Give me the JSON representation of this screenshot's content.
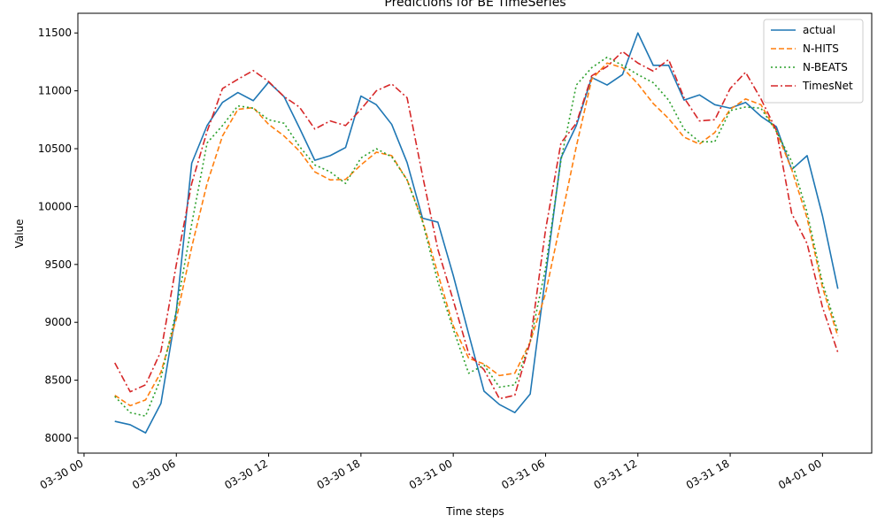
{
  "chart_data": {
    "type": "line",
    "title": "Predictions for BE TimeSeries",
    "xlabel": "Time steps",
    "ylabel": "Value",
    "ylim": [
      7870,
      11670
    ],
    "yticks": [
      8000,
      8500,
      9000,
      9500,
      10000,
      10500,
      11000,
      11500
    ],
    "xlim_hours": [
      -0.4,
      51.2
    ],
    "xticks": [
      {
        "hour": 0,
        "label": "03-30 00"
      },
      {
        "hour": 6,
        "label": "03-30 06"
      },
      {
        "hour": 12,
        "label": "03-30 12"
      },
      {
        "hour": 18,
        "label": "03-30 18"
      },
      {
        "hour": 24,
        "label": "03-31 00"
      },
      {
        "hour": 30,
        "label": "03-31 06"
      },
      {
        "hour": 36,
        "label": "03-31 12"
      },
      {
        "hour": 42,
        "label": "03-31 18"
      },
      {
        "hour": 48,
        "label": "04-01 00"
      }
    ],
    "x_start_hour": 2,
    "legend_position": "top-right",
    "series": [
      {
        "name": "actual",
        "color": "#1f77b4",
        "dash": "solid",
        "values": [
          8145,
          8115,
          8045,
          8300,
          9100,
          10375,
          10700,
          10900,
          10985,
          10915,
          11075,
          10950,
          10680,
          10400,
          10440,
          10510,
          10955,
          10880,
          10710,
          10380,
          9900,
          9865,
          9405,
          8900,
          8405,
          8290,
          8220,
          8380,
          9400,
          10420,
          10700,
          11115,
          11050,
          11140,
          11500,
          11220,
          11220,
          10920,
          10965,
          10880,
          10850,
          10900,
          10780,
          10690,
          10320,
          10440,
          9920,
          9290
        ]
      },
      {
        "name": "N-HITS",
        "color": "#ff7f0e",
        "dash": "dashed",
        "values": [
          8370,
          8280,
          8330,
          8570,
          9030,
          9650,
          10200,
          10610,
          10840,
          10855,
          10710,
          10610,
          10480,
          10300,
          10230,
          10235,
          10360,
          10470,
          10440,
          10230,
          9880,
          9420,
          8970,
          8690,
          8640,
          8540,
          8560,
          8830,
          9250,
          9880,
          10520,
          11100,
          11240,
          11200,
          11060,
          10890,
          10760,
          10600,
          10540,
          10640,
          10840,
          10930,
          10880,
          10650,
          10320,
          9900,
          9300,
          8880
        ]
      },
      {
        "name": "N-BEATS",
        "color": "#2ca02c",
        "dash": "dotted",
        "values": [
          8360,
          8220,
          8190,
          8520,
          9100,
          9850,
          10550,
          10700,
          10870,
          10850,
          10750,
          10720,
          10520,
          10360,
          10300,
          10200,
          10420,
          10500,
          10430,
          10230,
          9870,
          9350,
          8940,
          8560,
          8630,
          8440,
          8460,
          8830,
          9470,
          10400,
          11050,
          11200,
          11290,
          11220,
          11140,
          11070,
          10920,
          10670,
          10560,
          10560,
          10830,
          10860,
          10850,
          10650,
          10390,
          9950,
          9340,
          8920
        ]
      },
      {
        "name": "TimesNet",
        "color": "#d62728",
        "dash": "dashdot",
        "values": [
          8650,
          8400,
          8460,
          8750,
          9500,
          10200,
          10650,
          11020,
          11100,
          11175,
          11080,
          10950,
          10860,
          10670,
          10740,
          10700,
          10840,
          11000,
          11060,
          10940,
          10270,
          9630,
          9190,
          8730,
          8590,
          8340,
          8370,
          8830,
          9800,
          10550,
          10720,
          11130,
          11210,
          11340,
          11240,
          11170,
          11270,
          10940,
          10740,
          10750,
          11020,
          11160,
          10930,
          10660,
          9940,
          9680,
          9130,
          8740
        ]
      }
    ]
  }
}
